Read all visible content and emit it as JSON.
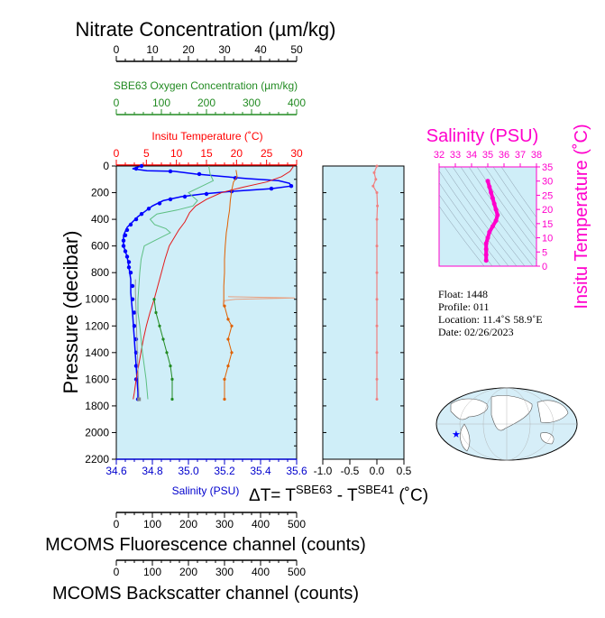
{
  "chart_data": [
    {
      "type": "line",
      "id": "main_profiles",
      "ylabel": "Pressure (decibar)",
      "ylim": [
        2200,
        0
      ],
      "yticks": [
        0,
        200,
        400,
        600,
        800,
        1000,
        1200,
        1400,
        1600,
        1800,
        2000,
        2200
      ],
      "axes": {
        "nitrate": {
          "title": "Nitrate Concentration (µm/kg)",
          "range": [
            0,
            50
          ],
          "ticks": [
            0,
            10,
            20,
            30,
            40,
            50
          ],
          "color": "#000000"
        },
        "oxygen": {
          "title": "SBE63 Oxygen Concentration (µm/kg)",
          "range": [
            0,
            400
          ],
          "ticks": [
            0,
            100,
            200,
            300,
            400
          ],
          "color": "#228b22"
        },
        "temperature": {
          "title": "Insitu Temperature (˚C)",
          "range": [
            0,
            30
          ],
          "ticks": [
            0,
            5,
            10,
            15,
            20,
            25,
            30
          ],
          "color": "#ff0000"
        },
        "salinity": {
          "title": "Salinity (PSU)",
          "range": [
            34.6,
            35.6
          ],
          "ticks": [
            "34.6",
            "34.8",
            "35.0",
            "35.2",
            "35.4",
            "35.6"
          ],
          "color": "#0000cd"
        },
        "fluorescence": {
          "title": "MCOMS Fluorescence channel (counts)",
          "range": [
            0,
            500
          ],
          "ticks": [
            0,
            100,
            200,
            300,
            400,
            500
          ]
        },
        "backscatter": {
          "title": "MCOMS Backscatter channel (counts)",
          "range": [
            0,
            500
          ],
          "ticks": [
            0,
            100,
            200,
            300,
            400,
            500
          ]
        }
      },
      "series": [
        {
          "key": "salinity",
          "color": "#0000ff",
          "points": [
            [
              34.74,
              0
            ],
            [
              34.69,
              20
            ],
            [
              34.77,
              35
            ],
            [
              34.92,
              40
            ],
            [
              35.04,
              60
            ],
            [
              35.2,
              80
            ],
            [
              35.33,
              95
            ],
            [
              35.5,
              110
            ],
            [
              35.56,
              130
            ],
            [
              35.57,
              150
            ],
            [
              35.46,
              170
            ],
            [
              35.24,
              190
            ],
            [
              35.08,
              210
            ],
            [
              34.96,
              230
            ],
            [
              34.86,
              260
            ],
            [
              34.8,
              300
            ],
            [
              34.76,
              340
            ],
            [
              34.72,
              380
            ],
            [
              34.69,
              420
            ],
            [
              34.66,
              460
            ],
            [
              34.64,
              520
            ],
            [
              34.64,
              600
            ],
            [
              34.66,
              680
            ],
            [
              34.67,
              760
            ],
            [
              34.68,
              850
            ],
            [
              34.68,
              950
            ],
            [
              34.69,
              1100
            ],
            [
              34.7,
              1300
            ],
            [
              34.71,
              1500
            ],
            [
              34.72,
              1700
            ],
            [
              34.72,
              1750
            ]
          ],
          "markers": [
            [
              34.74,
              0
            ],
            [
              34.71,
              20
            ],
            [
              34.9,
              40
            ],
            [
              35.06,
              60
            ],
            [
              35.26,
              90
            ],
            [
              35.57,
              150
            ],
            [
              35.46,
              170
            ],
            [
              35.24,
              190
            ],
            [
              35.1,
              210
            ],
            [
              34.98,
              230
            ],
            [
              34.9,
              250
            ],
            [
              34.84,
              280
            ],
            [
              34.78,
              320
            ],
            [
              34.74,
              360
            ],
            [
              34.71,
              400
            ],
            [
              34.68,
              440
            ],
            [
              34.66,
              480
            ],
            [
              34.65,
              520
            ],
            [
              34.64,
              560
            ],
            [
              34.64,
              600
            ],
            [
              34.65,
              640
            ],
            [
              34.66,
              680
            ],
            [
              34.67,
              720
            ],
            [
              34.67,
              760
            ],
            [
              34.68,
              800
            ],
            [
              34.69,
              900
            ],
            [
              34.69,
              1000
            ],
            [
              34.7,
              1100
            ],
            [
              34.7,
              1200
            ],
            [
              34.71,
              1300
            ],
            [
              34.71,
              1400
            ],
            [
              34.71,
              1500
            ],
            [
              34.71,
              1600
            ],
            [
              34.72,
              1750
            ]
          ]
        },
        {
          "key": "temperature",
          "color": "#e31a1c",
          "points": [
            [
              29.5,
              0
            ],
            [
              28.9,
              40
            ],
            [
              27.5,
              80
            ],
            [
              25,
              120
            ],
            [
              21,
              160
            ],
            [
              17.5,
              200
            ],
            [
              15,
              250
            ],
            [
              13.2,
              300
            ],
            [
              12.2,
              350
            ],
            [
              11.4,
              420
            ],
            [
              10.4,
              480
            ],
            [
              9.6,
              540
            ],
            [
              8.8,
              600
            ],
            [
              8.1,
              700
            ],
            [
              7.5,
              800
            ],
            [
              6.9,
              900
            ],
            [
              6.3,
              1000
            ],
            [
              5.6,
              1100
            ],
            [
              5.0,
              1200
            ],
            [
              4.5,
              1300
            ],
            [
              4.1,
              1400
            ],
            [
              3.7,
              1500
            ],
            [
              3.3,
              1600
            ],
            [
              3.0,
              1700
            ],
            [
              2.8,
              1750
            ]
          ]
        },
        {
          "key": "oxygen",
          "color": "#5cbf82",
          "points": [
            [
              205,
              0
            ],
            [
              208,
              60
            ],
            [
              215,
              110
            ],
            [
              185,
              160
            ],
            [
              160,
              200
            ],
            [
              180,
              260
            ],
            [
              170,
              300
            ],
            [
              135,
              330
            ],
            [
              90,
              360
            ],
            [
              75,
              400
            ],
            [
              85,
              440
            ],
            [
              110,
              470
            ],
            [
              120,
              500
            ],
            [
              85,
              560
            ],
            [
              62,
              600
            ],
            [
              55,
              700
            ],
            [
              52,
              800
            ],
            [
              50,
              900
            ],
            [
              48,
              1000
            ],
            [
              48,
              1100
            ],
            [
              52,
              1200
            ],
            [
              55,
              1300
            ],
            [
              58,
              1400
            ],
            [
              62,
              1500
            ],
            [
              66,
              1600
            ],
            [
              70,
              1750
            ]
          ]
        },
        {
          "key": "nitrate",
          "color": "#999999",
          "points": [
            [
              6.3,
              1750
            ],
            [
              6.1,
              1600
            ],
            [
              5.9,
              1450
            ],
            [
              5.7,
              1300
            ],
            [
              5.5,
              1100
            ],
            [
              5.3,
              950
            ],
            [
              5.3,
              850
            ]
          ]
        },
        {
          "key": "fluorescence_red",
          "color": "#e06000",
          "points": [
            [
              332,
              30
            ],
            [
              335,
              80
            ],
            [
              325,
              120
            ],
            [
              320,
              180
            ],
            [
              316,
              260
            ],
            [
              314,
              330
            ],
            [
              310,
              400
            ],
            [
              308,
              450
            ],
            [
              305,
              500
            ],
            [
              302,
              600
            ],
            [
              300,
              700
            ],
            [
              300,
              800
            ],
            [
              298,
              900
            ],
            [
              298,
              1000
            ],
            [
              297,
              1050
            ]
          ]
        },
        {
          "key": "backscatter_fill",
          "color": "#e8a080",
          "points": [
            [
              310,
              980
            ],
            [
              495,
              990
            ],
            [
              330,
              1000
            ],
            [
              300,
              1010
            ],
            [
              298,
              1050
            ]
          ]
        },
        {
          "key": "nitrate_green",
          "color": "#228b22",
          "points": [
            [
              10.5,
              1000
            ],
            [
              11,
              1100
            ],
            [
              12,
              1200
            ],
            [
              13,
              1300
            ],
            [
              14,
              1400
            ],
            [
              15,
              1500
            ],
            [
              15.5,
              1600
            ],
            [
              15.5,
              1750
            ]
          ]
        },
        {
          "key": "orange_deep",
          "color": "#e06000",
          "points": [
            [
              30,
              1050
            ],
            [
              31,
              1150
            ],
            [
              32,
              1200
            ],
            [
              31,
              1300
            ],
            [
              32,
              1400
            ],
            [
              31,
              1500
            ],
            [
              30,
              1600
            ],
            [
              30,
              1750
            ]
          ]
        }
      ]
    },
    {
      "type": "line",
      "id": "delta_t",
      "xlabel_parts": [
        "ΔT= T",
        "SBE63",
        " - T",
        "SBE41",
        " (˚C)"
      ],
      "xlim": [
        -1.0,
        0.5
      ],
      "xticks": [
        "-1.0",
        "-0.5",
        "0.0",
        "0.5"
      ],
      "ylim": [
        2200,
        0
      ],
      "series": [
        {
          "name": "dT",
          "color": "#f08080",
          "points": [
            [
              0.0,
              0
            ],
            [
              -0.05,
              50
            ],
            [
              -0.02,
              100
            ],
            [
              -0.07,
              150
            ],
            [
              0.0,
              200
            ],
            [
              0.01,
              300
            ],
            [
              0.0,
              400
            ],
            [
              0.0,
              600
            ],
            [
              0.0,
              800
            ],
            [
              0.0,
              1000
            ],
            [
              0.0,
              1200
            ],
            [
              0.0,
              1400
            ],
            [
              0.0,
              1600
            ],
            [
              0.0,
              1750
            ]
          ]
        }
      ]
    },
    {
      "type": "scatter",
      "id": "ts_diagram",
      "title": "Salinity (PSU)",
      "ylabel": "Insitu Temperature (˚C)",
      "xlim": [
        32,
        38
      ],
      "ylim": [
        0,
        35
      ],
      "xticks": [
        32,
        33,
        34,
        35,
        36,
        37,
        38
      ],
      "yticks": [
        0,
        5,
        10,
        15,
        20,
        25,
        30,
        35
      ],
      "color": "#ff00cc",
      "points": [
        [
          35.0,
          30
        ],
        [
          35.1,
          28
        ],
        [
          35.2,
          26
        ],
        [
          35.3,
          24
        ],
        [
          35.4,
          22
        ],
        [
          35.5,
          20
        ],
        [
          35.6,
          18
        ],
        [
          35.5,
          16
        ],
        [
          35.3,
          14
        ],
        [
          35.1,
          12
        ],
        [
          35.0,
          10
        ],
        [
          34.9,
          8
        ],
        [
          34.9,
          6
        ],
        [
          34.9,
          4
        ],
        [
          34.9,
          2
        ]
      ]
    }
  ],
  "float_info": {
    "float": "Float:   1448",
    "profile": "Profile:  011",
    "location": "Location:  11.4˚S  58.9˚E",
    "date": "Date:  02/26/2023"
  },
  "map": {
    "ocean_color": "#d6eef8",
    "land_color": "#ffffff",
    "marker": "star",
    "marker_color": "#0000ff"
  }
}
